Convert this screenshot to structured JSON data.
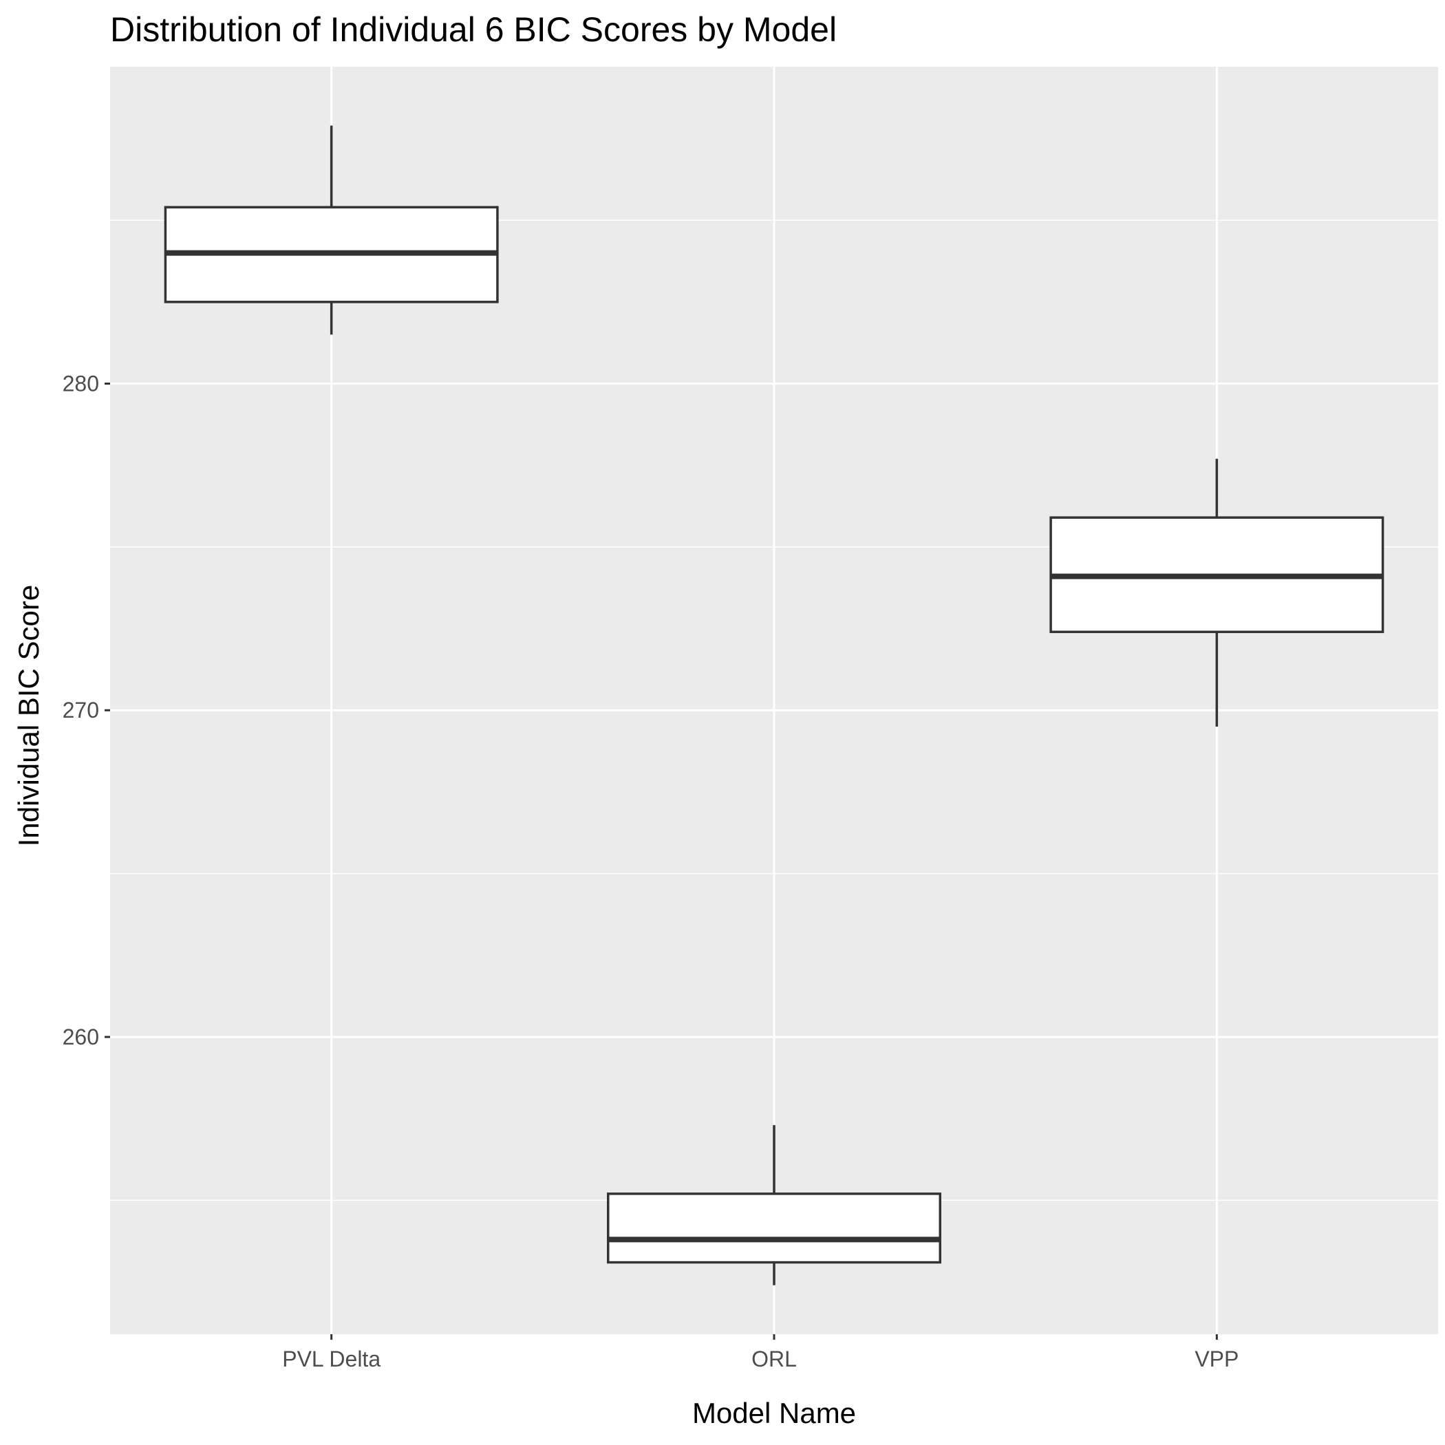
{
  "chart_data": {
    "type": "boxplot",
    "title": "Distribution of Individual 6 BIC Scores by Model",
    "xlabel": "Model Name",
    "ylabel": "Individual BIC Score",
    "categories": [
      "PVL Delta",
      "ORL",
      "VPP"
    ],
    "boxes": [
      {
        "category": "PVL Delta",
        "whisker_low": 281.5,
        "q1": 282.5,
        "median": 284.0,
        "q3": 285.4,
        "whisker_high": 287.9
      },
      {
        "category": "ORL",
        "whisker_low": 252.4,
        "q1": 253.1,
        "median": 253.8,
        "q3": 255.2,
        "whisker_high": 257.3
      },
      {
        "category": "VPP",
        "whisker_low": 269.5,
        "q1": 272.4,
        "median": 274.1,
        "q3": 275.9,
        "whisker_high": 277.7
      }
    ],
    "yticks": [
      260,
      270,
      280
    ],
    "ylim": [
      250.9,
      289.7
    ],
    "grid": true,
    "colors": {
      "panel": "#EBEBEB",
      "grid": "#FFFFFF",
      "box_fill": "#FFFFFF",
      "box_stroke": "#333333",
      "tick_label": "#4D4D4D"
    }
  }
}
